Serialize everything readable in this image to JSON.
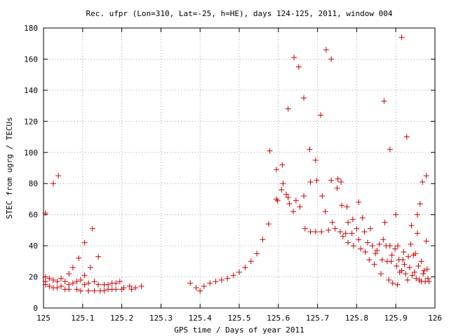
{
  "chart_data": {
    "type": "scatter",
    "title": "Rec. ufpr (Lon=310, Lat=-25, h=HE), days 124-125, 2011, window 004",
    "xlabel": "GPS time / Days of year 2011",
    "ylabel": "STEC from ugrg / TECUs",
    "xlim": [
      125,
      126
    ],
    "ylim": [
      0,
      180
    ],
    "xticks": [
      125,
      125.1,
      125.2,
      125.3,
      125.4,
      125.5,
      125.6,
      125.7,
      125.8,
      125.9,
      126
    ],
    "xtick_labels": [
      "125",
      "125.1",
      "125.2",
      "125.3",
      "125.4",
      "125.5",
      "125.6",
      "125.7",
      "125.8",
      "125.9",
      "126"
    ],
    "yticks": [
      0,
      20,
      40,
      60,
      80,
      100,
      120,
      140,
      160,
      180
    ],
    "ytick_labels": [
      "0",
      "20",
      "40",
      "60",
      "80",
      "100",
      "120",
      "140",
      "160",
      "180"
    ],
    "grid": true,
    "marker": "+",
    "color": "#cc0000",
    "points": [
      [
        125.005,
        61
      ],
      [
        125.025,
        80
      ],
      [
        125.038,
        85
      ],
      [
        125.005,
        20
      ],
      [
        125.005,
        17
      ],
      [
        125.005,
        15
      ],
      [
        125.015,
        19
      ],
      [
        125.015,
        14
      ],
      [
        125.025,
        18
      ],
      [
        125.025,
        13
      ],
      [
        125.035,
        17
      ],
      [
        125.035,
        13
      ],
      [
        125.045,
        19
      ],
      [
        125.045,
        14
      ],
      [
        125.055,
        17
      ],
      [
        125.055,
        12
      ],
      [
        125.065,
        22
      ],
      [
        125.065,
        15
      ],
      [
        125.065,
        12
      ],
      [
        125.075,
        26
      ],
      [
        125.075,
        16
      ],
      [
        125.085,
        17
      ],
      [
        125.085,
        12
      ],
      [
        125.09,
        32
      ],
      [
        125.095,
        18
      ],
      [
        125.095,
        11
      ],
      [
        125.105,
        42
      ],
      [
        125.105,
        21
      ],
      [
        125.105,
        15
      ],
      [
        125.115,
        16
      ],
      [
        125.115,
        11
      ],
      [
        125.12,
        26
      ],
      [
        125.125,
        51
      ],
      [
        125.13,
        17
      ],
      [
        125.13,
        11
      ],
      [
        125.14,
        33
      ],
      [
        125.14,
        15
      ],
      [
        125.145,
        11
      ],
      [
        125.155,
        15
      ],
      [
        125.155,
        11
      ],
      [
        125.165,
        15
      ],
      [
        125.165,
        12
      ],
      [
        125.175,
        16
      ],
      [
        125.175,
        12
      ],
      [
        125.185,
        16
      ],
      [
        125.185,
        12
      ],
      [
        125.195,
        17
      ],
      [
        125.2,
        12
      ],
      [
        125.205,
        13
      ],
      [
        125.22,
        14
      ],
      [
        125.225,
        12
      ],
      [
        125.235,
        13
      ],
      [
        125.25,
        14
      ],
      [
        125.375,
        16
      ],
      [
        125.39,
        13
      ],
      [
        125.4,
        11
      ],
      [
        125.41,
        14
      ],
      [
        125.425,
        16
      ],
      [
        125.44,
        17
      ],
      [
        125.455,
        18
      ],
      [
        125.47,
        19
      ],
      [
        125.485,
        21
      ],
      [
        125.5,
        23
      ],
      [
        125.515,
        26
      ],
      [
        125.53,
        30
      ],
      [
        125.545,
        35
      ],
      [
        125.56,
        44
      ],
      [
        125.575,
        54
      ],
      [
        125.578,
        101
      ],
      [
        125.595,
        70
      ],
      [
        125.595,
        89
      ],
      [
        125.598,
        69
      ],
      [
        125.608,
        76
      ],
      [
        125.61,
        92
      ],
      [
        125.612,
        80
      ],
      [
        125.62,
        73
      ],
      [
        125.625,
        128
      ],
      [
        125.628,
        67
      ],
      [
        125.625,
        71
      ],
      [
        125.638,
        62
      ],
      [
        125.64,
        161
      ],
      [
        125.645,
        69
      ],
      [
        125.652,
        155
      ],
      [
        125.655,
        65
      ],
      [
        125.665,
        135
      ],
      [
        125.665,
        72
      ],
      [
        125.668,
        51
      ],
      [
        125.68,
        102
      ],
      [
        125.682,
        49
      ],
      [
        125.682,
        81
      ],
      [
        125.695,
        95
      ],
      [
        125.695,
        49
      ],
      [
        125.698,
        82
      ],
      [
        125.708,
        124
      ],
      [
        125.71,
        49
      ],
      [
        125.712,
        72
      ],
      [
        125.72,
        62
      ],
      [
        125.722,
        166
      ],
      [
        125.728,
        50
      ],
      [
        125.735,
        160
      ],
      [
        125.735,
        82
      ],
      [
        125.738,
        55
      ],
      [
        125.745,
        51
      ],
      [
        125.75,
        77
      ],
      [
        125.752,
        83
      ],
      [
        125.758,
        49
      ],
      [
        125.76,
        81
      ],
      [
        125.762,
        66
      ],
      [
        125.765,
        46
      ],
      [
        125.772,
        48
      ],
      [
        125.775,
        65
      ],
      [
        125.778,
        55
      ],
      [
        125.778,
        42
      ],
      [
        125.788,
        48
      ],
      [
        125.79,
        57
      ],
      [
        125.792,
        40
      ],
      [
        125.8,
        51
      ],
      [
        125.805,
        68
      ],
      [
        125.805,
        44
      ],
      [
        125.81,
        38
      ],
      [
        125.815,
        58
      ],
      [
        125.82,
        49
      ],
      [
        125.822,
        36
      ],
      [
        125.828,
        42
      ],
      [
        125.832,
        31
      ],
      [
        125.835,
        51
      ],
      [
        125.84,
        40
      ],
      [
        125.845,
        28
      ],
      [
        125.848,
        35
      ],
      [
        125.852,
        37
      ],
      [
        125.858,
        41
      ],
      [
        125.862,
        22
      ],
      [
        125.865,
        31
      ],
      [
        125.868,
        44
      ],
      [
        125.87,
        133
      ],
      [
        125.872,
        55
      ],
      [
        125.875,
        40
      ],
      [
        125.878,
        30
      ],
      [
        125.882,
        18
      ],
      [
        125.885,
        102
      ],
      [
        125.885,
        40
      ],
      [
        125.888,
        30
      ],
      [
        125.89,
        34
      ],
      [
        125.892,
        16
      ],
      [
        125.898,
        38
      ],
      [
        125.9,
        60
      ],
      [
        125.902,
        27
      ],
      [
        125.904,
        15
      ],
      [
        125.905,
        40
      ],
      [
        125.908,
        31
      ],
      [
        125.91,
        23
      ],
      [
        125.915,
        174
      ],
      [
        125.915,
        24
      ],
      [
        125.918,
        31
      ],
      [
        125.92,
        36
      ],
      [
        125.922,
        28
      ],
      [
        125.925,
        22
      ],
      [
        125.928,
        110
      ],
      [
        125.93,
        18
      ],
      [
        125.932,
        33
      ],
      [
        125.935,
        26
      ],
      [
        125.938,
        41
      ],
      [
        125.94,
        53
      ],
      [
        125.942,
        21
      ],
      [
        125.945,
        34
      ],
      [
        125.948,
        23
      ],
      [
        125.95,
        35
      ],
      [
        125.952,
        19
      ],
      [
        125.955,
        60
      ],
      [
        125.955,
        48
      ],
      [
        125.958,
        27
      ],
      [
        125.96,
        18
      ],
      [
        125.962,
        67
      ],
      [
        125.965,
        30
      ],
      [
        125.965,
        17
      ],
      [
        125.968,
        81
      ],
      [
        125.97,
        22
      ],
      [
        125.972,
        24
      ],
      [
        125.975,
        17
      ],
      [
        125.978,
        85
      ],
      [
        125.978,
        43
      ],
      [
        125.98,
        25
      ],
      [
        125.982,
        19
      ],
      [
        125.985,
        17
      ]
    ]
  }
}
